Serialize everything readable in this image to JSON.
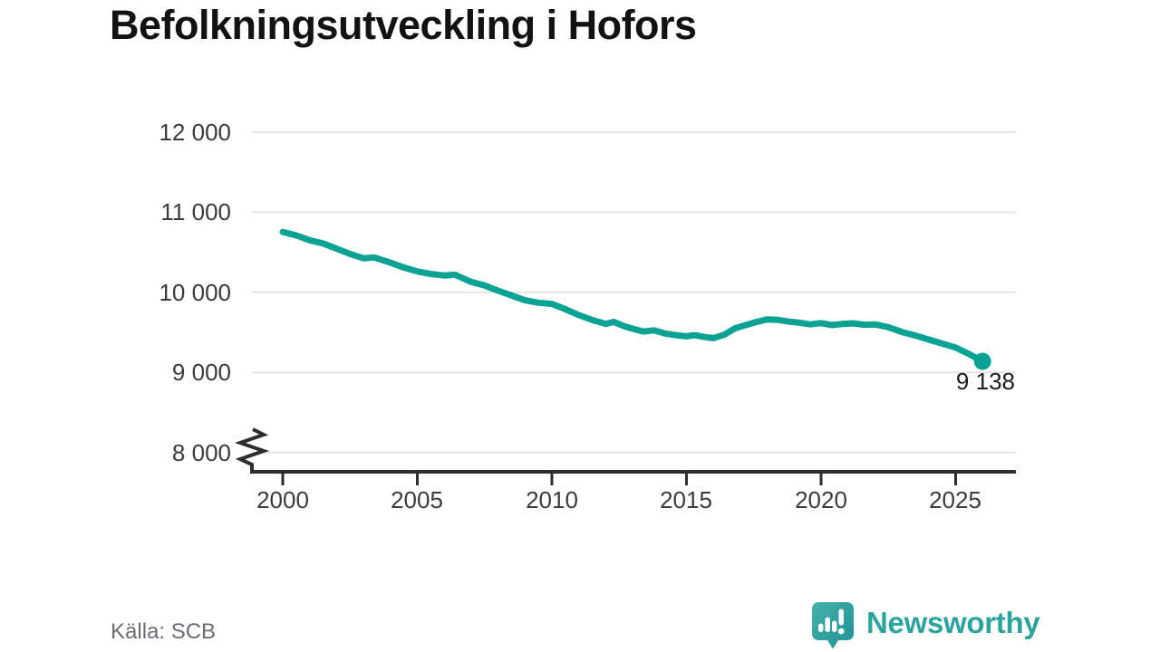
{
  "header": {
    "title": "Befolkningsutveckling i Hofors"
  },
  "chart_data": {
    "type": "line",
    "title": "Befolkningsutveckling i Hofors",
    "xlabel": "",
    "ylabel": "",
    "x_tick_labels": [
      "2000",
      "2005",
      "2010",
      "2015",
      "2020",
      "2025"
    ],
    "y_tick_labels": [
      "12 000",
      "11 000",
      "10 000",
      "9 000",
      "8 000"
    ],
    "y_tick_values": [
      12000,
      11000,
      10000,
      9000,
      8000
    ],
    "y_axis_break_below": 8000,
    "x_range": [
      2000,
      2027
    ],
    "grid": "horizontal-only",
    "legend": "none",
    "line_color": "#0ba296",
    "end_point": {
      "x": 2026,
      "value": 9138,
      "label": "9 138"
    },
    "points": [
      [
        2000.0,
        10755
      ],
      [
        2000.5,
        10710
      ],
      [
        2001.0,
        10650
      ],
      [
        2001.5,
        10610
      ],
      [
        2002.0,
        10545
      ],
      [
        2002.5,
        10480
      ],
      [
        2003.0,
        10425
      ],
      [
        2003.4,
        10435
      ],
      [
        2004.0,
        10370
      ],
      [
        2004.5,
        10310
      ],
      [
        2005.0,
        10260
      ],
      [
        2005.5,
        10230
      ],
      [
        2006.0,
        10210
      ],
      [
        2006.4,
        10220
      ],
      [
        2007.0,
        10130
      ],
      [
        2007.5,
        10085
      ],
      [
        2008.0,
        10020
      ],
      [
        2008.5,
        9960
      ],
      [
        2009.0,
        9900
      ],
      [
        2009.5,
        9870
      ],
      [
        2010.0,
        9855
      ],
      [
        2010.5,
        9790
      ],
      [
        2011.0,
        9715
      ],
      [
        2011.5,
        9655
      ],
      [
        2012.0,
        9605
      ],
      [
        2012.3,
        9630
      ],
      [
        2012.7,
        9575
      ],
      [
        2013.0,
        9545
      ],
      [
        2013.4,
        9510
      ],
      [
        2013.8,
        9525
      ],
      [
        2014.2,
        9485
      ],
      [
        2014.6,
        9465
      ],
      [
        2015.0,
        9450
      ],
      [
        2015.3,
        9465
      ],
      [
        2015.7,
        9440
      ],
      [
        2016.0,
        9428
      ],
      [
        2016.4,
        9470
      ],
      [
        2016.8,
        9550
      ],
      [
        2017.2,
        9590
      ],
      [
        2017.6,
        9630
      ],
      [
        2018.0,
        9662
      ],
      [
        2018.4,
        9655
      ],
      [
        2018.8,
        9635
      ],
      [
        2019.2,
        9620
      ],
      [
        2019.6,
        9600
      ],
      [
        2020.0,
        9615
      ],
      [
        2020.4,
        9590
      ],
      [
        2020.8,
        9605
      ],
      [
        2021.2,
        9612
      ],
      [
        2021.6,
        9595
      ],
      [
        2022.0,
        9600
      ],
      [
        2022.5,
        9565
      ],
      [
        2023.0,
        9505
      ],
      [
        2023.5,
        9460
      ],
      [
        2024.0,
        9410
      ],
      [
        2024.5,
        9360
      ],
      [
        2025.0,
        9310
      ],
      [
        2025.5,
        9230
      ],
      [
        2026.0,
        9138
      ]
    ]
  },
  "footer": {
    "source": "Källa: SCB",
    "brand": "Newsworthy"
  },
  "icons": {
    "brand_logo": "newsworthy-speech-bubble-bar-chart-icon"
  },
  "colors": {
    "line": "#0ba296",
    "grid": "#e4e4e4",
    "axis": "#2d2d2d",
    "title_text": "#121212",
    "tick_text": "#3b3b3b",
    "source_text": "#6b6b74",
    "brand_teal": "#2ca49e",
    "background": "#ffffff"
  }
}
